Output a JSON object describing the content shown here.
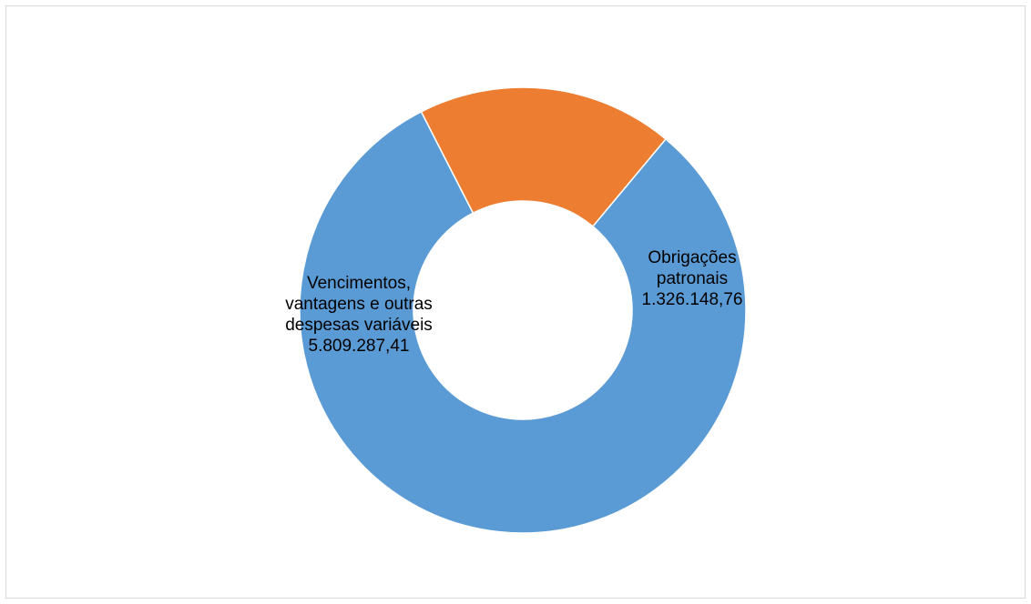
{
  "chart_data": {
    "type": "pie",
    "variant": "donut",
    "categories": [
      "Vencimentos, vantagens e outras despesas variáveis",
      "Obrigações patronais"
    ],
    "values": [
      5809287.41,
      1326148.76
    ],
    "value_labels": [
      "5.809.287,41",
      "1.326.148,76"
    ],
    "label_lines": [
      [
        "Vencimentos,",
        "vantagens e outras",
        "despesas variáveis"
      ],
      [
        "Obrigações",
        "patronais"
      ]
    ],
    "colors": [
      "#5b9bd5",
      "#ed7d31"
    ],
    "legend": "none",
    "title": ""
  }
}
